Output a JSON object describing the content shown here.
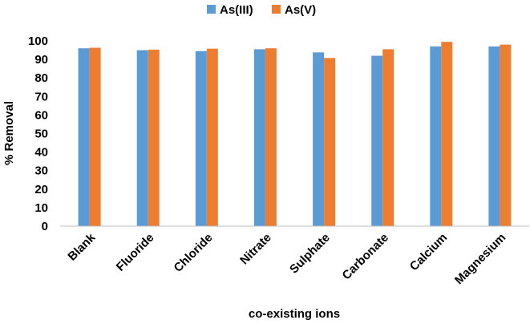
{
  "chart_data": {
    "type": "bar",
    "categories": [
      "Blank",
      "Fluoride",
      "Chloride",
      "Nitrate",
      "Sulphate",
      "Carbonate",
      "Calcium",
      "Magnesium"
    ],
    "series": [
      {
        "name": "As(III)",
        "color": "#5B9BD5",
        "values": [
          96,
          95,
          94.5,
          95.5,
          93.8,
          92,
          97,
          97
        ]
      },
      {
        "name": "As(V)",
        "color": "#ED7D31",
        "values": [
          96.3,
          95.3,
          95.8,
          96,
          90.8,
          95.5,
          99.5,
          98
        ]
      }
    ],
    "xlabel": "co-existing ions",
    "ylabel": "% Removal",
    "ylim": [
      0,
      100
    ],
    "yticks": [
      0,
      10,
      20,
      30,
      40,
      50,
      60,
      70,
      80,
      90,
      100
    ],
    "legend_position": "top",
    "grid": false
  }
}
